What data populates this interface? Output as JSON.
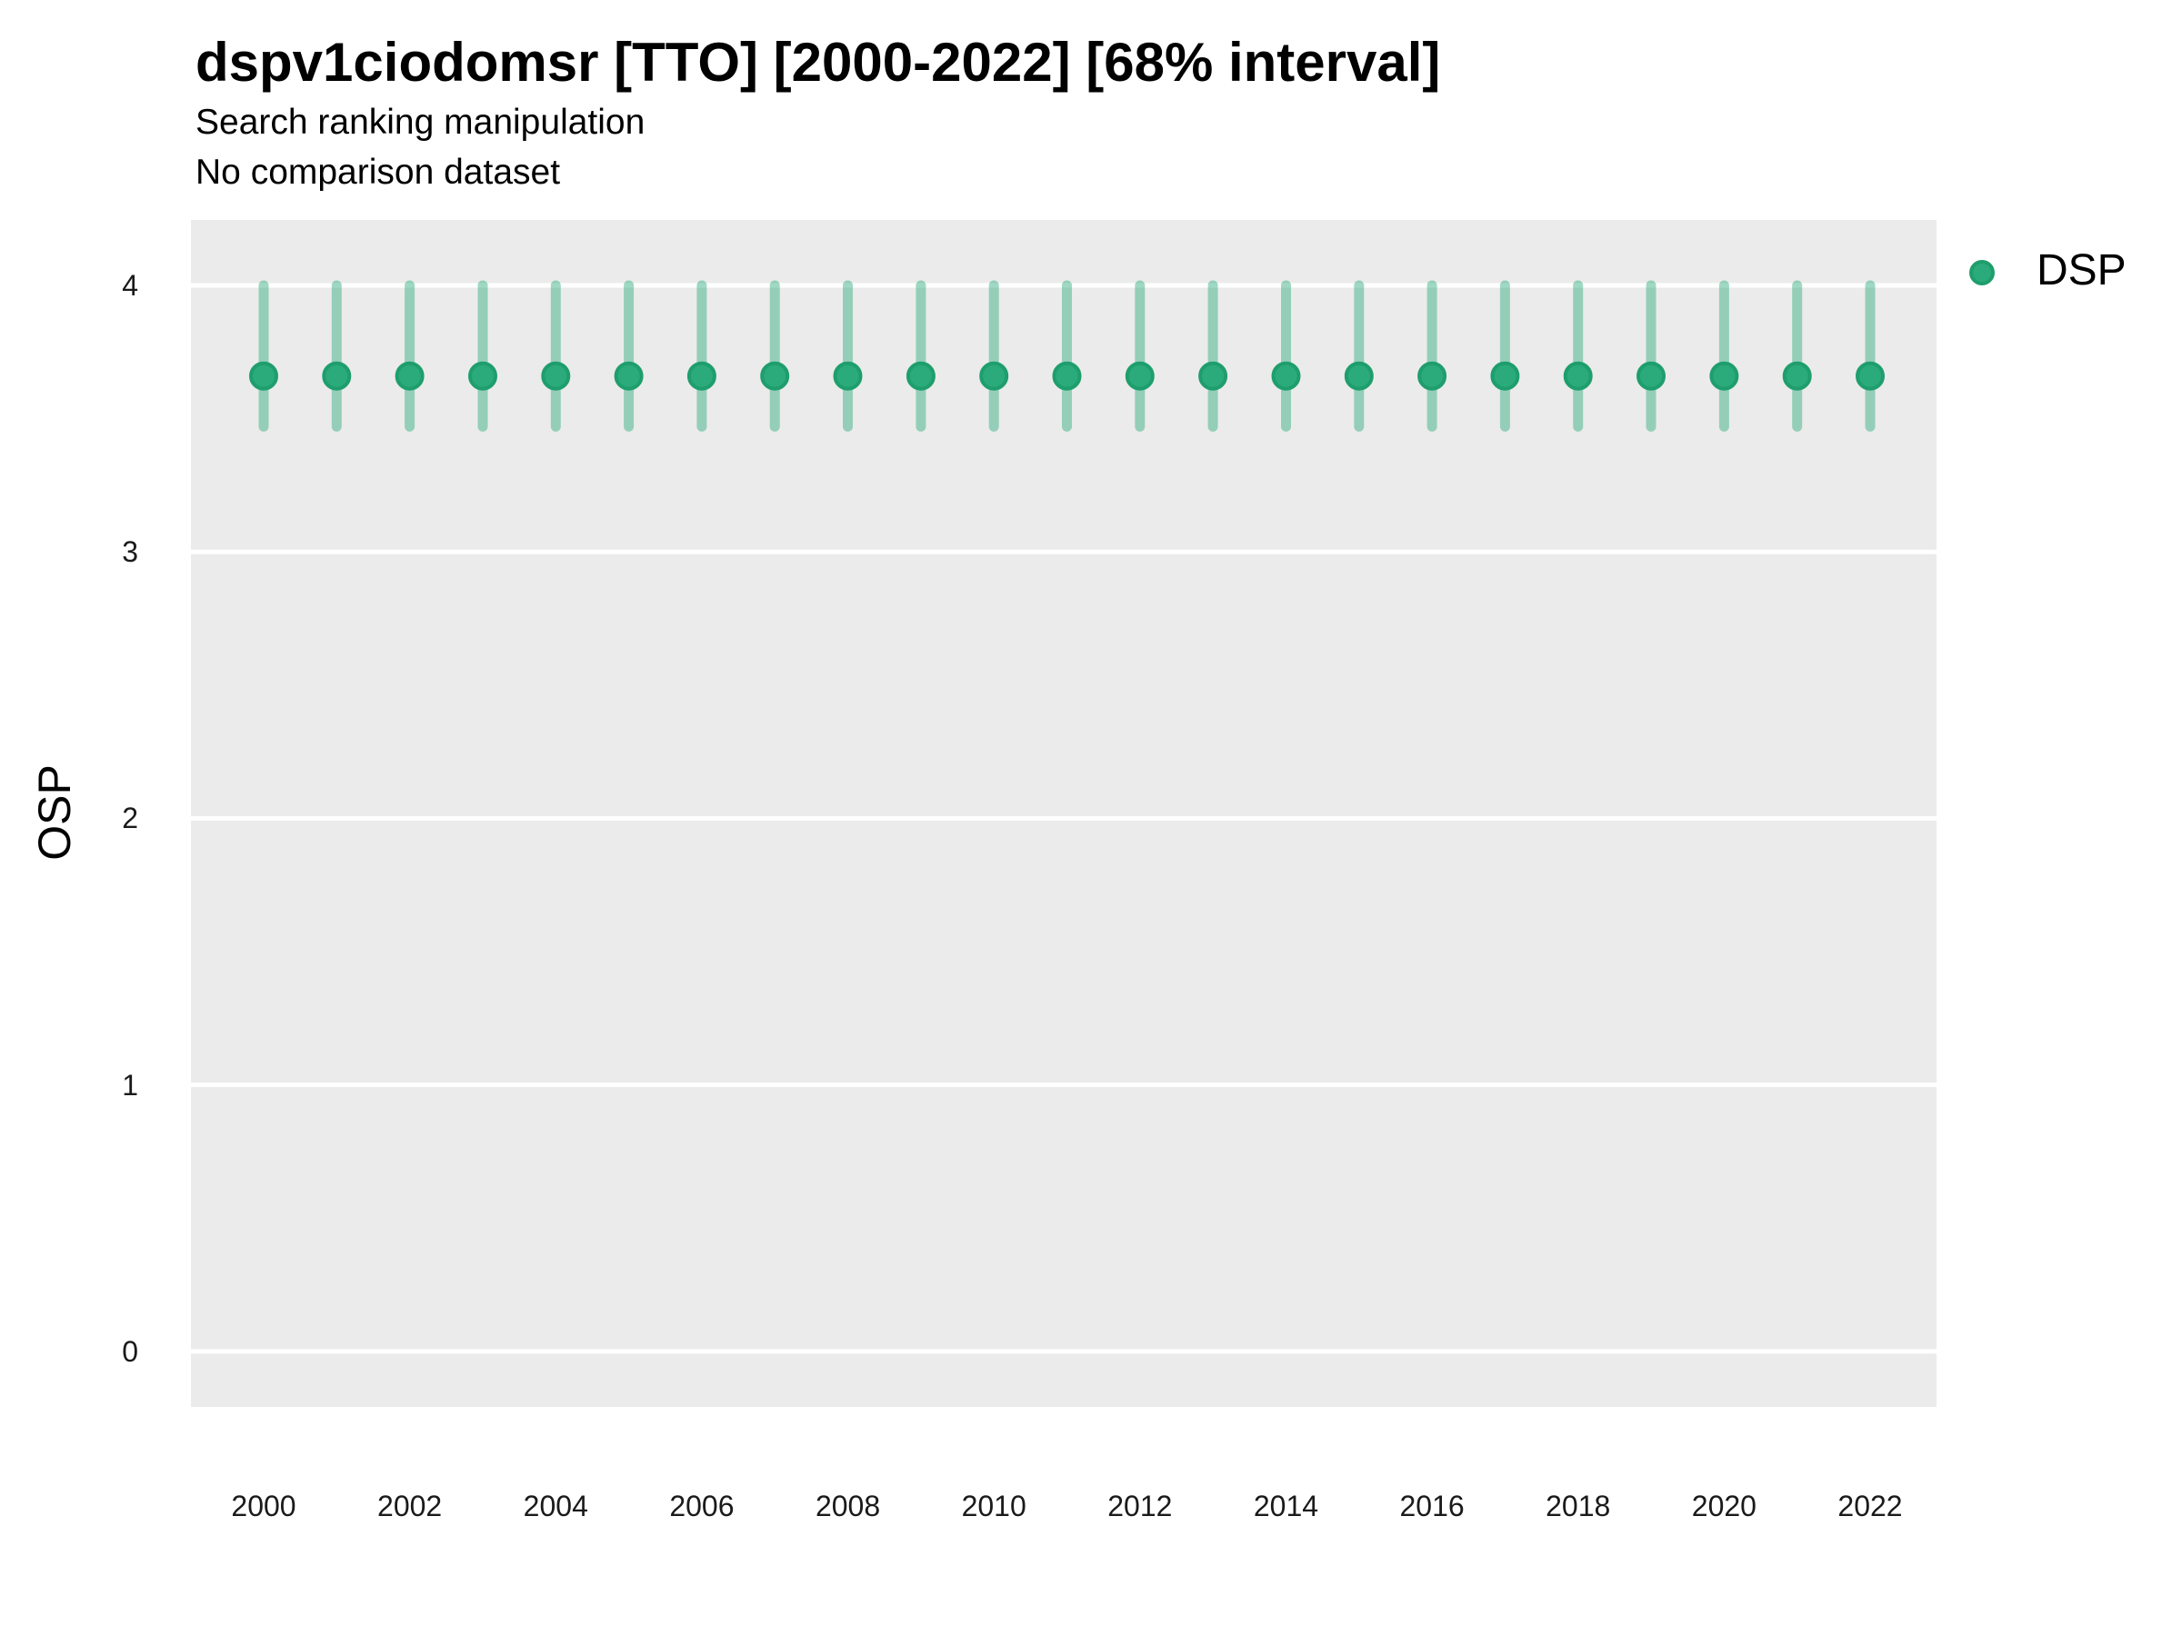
{
  "header": {
    "title": "dspv1ciodomsr [TTO] [2000-2022] [68% interval]",
    "subtitle1": "Search ranking manipulation",
    "subtitle2": "No comparison dataset"
  },
  "legend": {
    "position": "right",
    "items": [
      {
        "label": "DSP",
        "color": "#2baa7c",
        "border_color": "#1f9e6d"
      }
    ]
  },
  "chart_data": {
    "type": "pointrange",
    "title": "dspv1ciodomsr [TTO] [2000-2022] [68% interval]",
    "subtitle": [
      "Search ranking manipulation",
      "No comparison dataset"
    ],
    "xlabel": "",
    "ylabel": "OSP",
    "x": [
      2000,
      2001,
      2002,
      2003,
      2004,
      2005,
      2006,
      2007,
      2008,
      2009,
      2010,
      2011,
      2012,
      2013,
      2014,
      2015,
      2016,
      2017,
      2018,
      2019,
      2020,
      2021,
      2022
    ],
    "x_tick_labels": [
      2000,
      2002,
      2004,
      2006,
      2008,
      2010,
      2012,
      2014,
      2016,
      2018,
      2020,
      2022
    ],
    "y_ticks": [
      0,
      1,
      2,
      3,
      4
    ],
    "ylim": [
      -0.21,
      4.24
    ],
    "grid": "major-horizontal-only",
    "legend_position": "right",
    "series": [
      {
        "name": "DSP",
        "values": [
          3.66,
          3.66,
          3.66,
          3.66,
          3.66,
          3.66,
          3.66,
          3.66,
          3.66,
          3.66,
          3.66,
          3.66,
          3.66,
          3.66,
          3.66,
          3.66,
          3.66,
          3.66,
          3.66,
          3.66,
          3.66,
          3.66,
          3.66
        ],
        "lower": [
          3.47,
          3.47,
          3.47,
          3.47,
          3.47,
          3.47,
          3.47,
          3.47,
          3.47,
          3.47,
          3.47,
          3.47,
          3.47,
          3.47,
          3.47,
          3.47,
          3.47,
          3.47,
          3.47,
          3.47,
          3.47,
          3.47,
          3.47
        ],
        "upper": [
          4.0,
          4.0,
          4.0,
          4.0,
          4.0,
          4.0,
          4.0,
          4.0,
          4.0,
          4.0,
          4.0,
          4.0,
          4.0,
          4.0,
          4.0,
          4.0,
          4.0,
          4.0,
          4.0,
          4.0,
          4.0,
          4.0,
          4.0
        ],
        "interval": "68%",
        "point_color": "#2baa7c",
        "point_border_color": "#1f9e6d",
        "interval_color": "rgba(43, 170, 124, 0.45)"
      }
    ],
    "panel_background": "#ebebeb",
    "gridline_color": "#ffffff"
  }
}
